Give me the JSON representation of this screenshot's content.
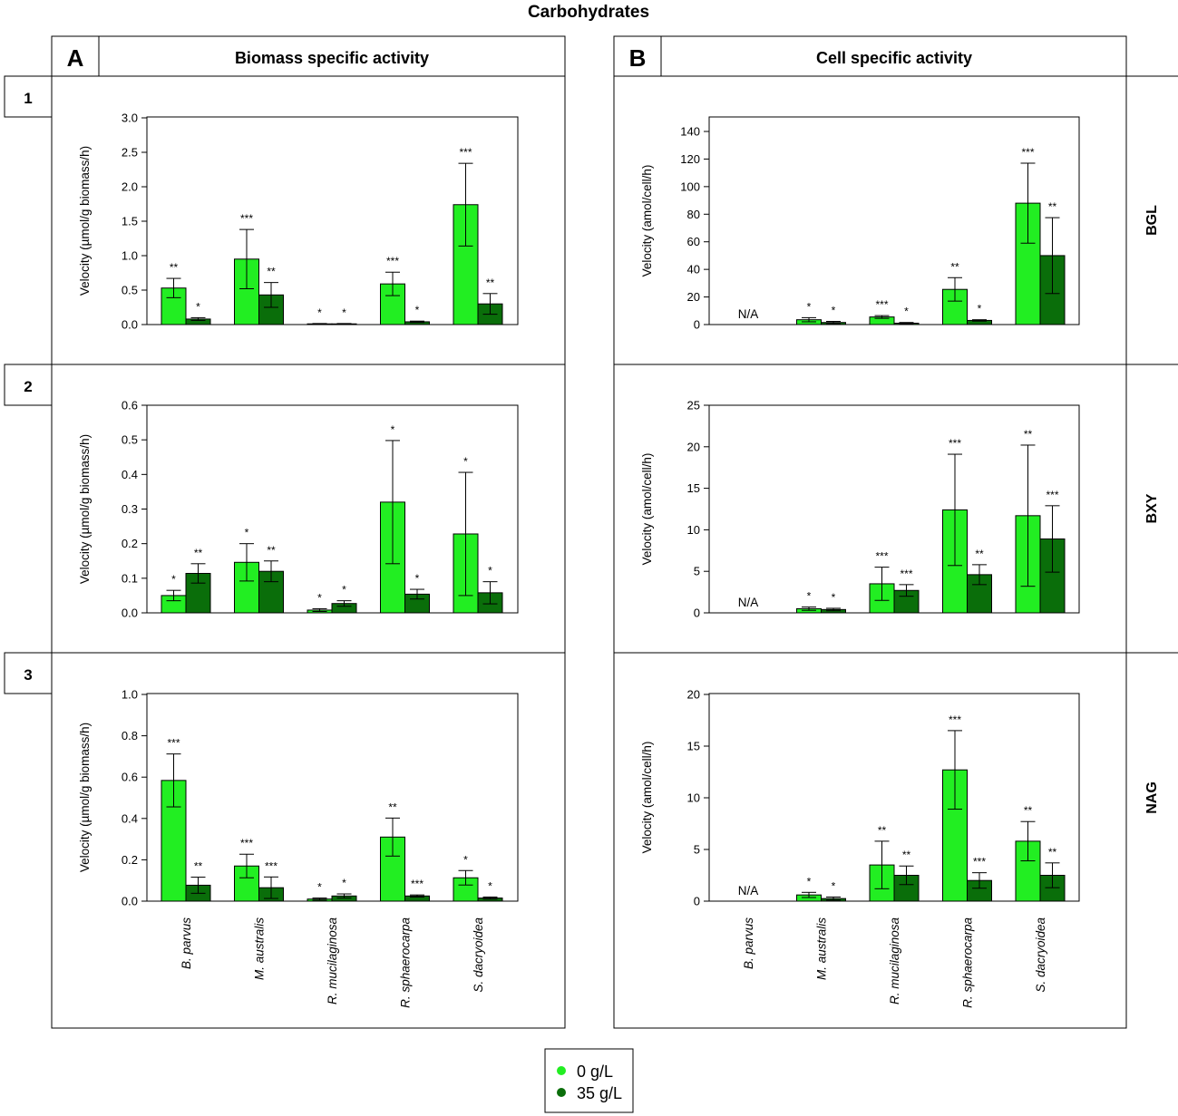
{
  "title": "Carbohydrates",
  "columns": [
    {
      "letter": "A",
      "heading": "Biomass specific activity"
    },
    {
      "letter": "B",
      "heading": "Cell specific activity"
    }
  ],
  "rows": [
    {
      "number": "1",
      "enzyme": "BGL"
    },
    {
      "number": "2",
      "enzyme": "BXY"
    },
    {
      "number": "3",
      "enzyme": "NAG"
    }
  ],
  "legend": {
    "items": [
      {
        "label": "0 g/L",
        "color": "#22EE22"
      },
      {
        "label": "35 g/L",
        "color": "#0A6E0A"
      }
    ]
  },
  "chart_data": [
    {
      "type": "bar",
      "panel": "A1",
      "ylabel": "Velocity (µmol/g biomass/h)",
      "ylim": [
        0,
        3.0
      ],
      "yticks": [
        "0.0",
        "0.5",
        "1.0",
        "1.5",
        "2.0",
        "2.5",
        "3.0"
      ],
      "categories": [
        "B. parvus",
        "M. australis",
        "R. mucilaginosa",
        "R. sphaerocarpa",
        "S. dacryoidea"
      ],
      "series": [
        {
          "name": "0 g/L",
          "values": [
            0.53,
            0.95,
            0.01,
            0.59,
            1.74
          ],
          "err": [
            0.14,
            0.43,
            0.005,
            0.17,
            0.6
          ],
          "sig": [
            "**",
            "***",
            "*",
            "***",
            "***"
          ]
        },
        {
          "name": "35 g/L",
          "values": [
            0.08,
            0.43,
            0.01,
            0.04,
            0.3
          ],
          "err": [
            0.02,
            0.18,
            0.005,
            0.01,
            0.15
          ],
          "sig": [
            "*",
            "**",
            "*",
            "*",
            "**"
          ]
        }
      ]
    },
    {
      "type": "bar",
      "panel": "B1",
      "ylabel": "Velocity (amol/cell/h)",
      "ylim": [
        0,
        150
      ],
      "yticks": [
        "0",
        "20",
        "40",
        "60",
        "80",
        "100",
        "120",
        "140"
      ],
      "categories": [
        "B. parvus",
        "M. australis",
        "R. mucilaginosa",
        "R. sphaerocarpa",
        "S. dacryoidea"
      ],
      "na_label": "N/A",
      "series": [
        {
          "name": "0 g/L",
          "values": [
            null,
            3.5,
            5.5,
            25.5,
            88
          ],
          "err": [
            null,
            1.5,
            1.0,
            8.5,
            29
          ],
          "sig": [
            null,
            "*",
            "***",
            "**",
            "***"
          ]
        },
        {
          "name": "35 g/L",
          "values": [
            null,
            1.5,
            1.0,
            3.0,
            50
          ],
          "err": [
            null,
            0.8,
            0.5,
            0.5,
            27.5
          ],
          "sig": [
            null,
            "*",
            "*",
            "*",
            "**"
          ]
        }
      ]
    },
    {
      "type": "bar",
      "panel": "A2",
      "ylabel": "Velocity (µmol/g biomass/h)",
      "ylim": [
        0,
        0.6
      ],
      "yticks": [
        "0.0",
        "0.1",
        "0.2",
        "0.3",
        "0.4",
        "0.5",
        "0.6"
      ],
      "categories": [
        "B. parvus",
        "M. australis",
        "R. mucilaginosa",
        "R. sphaerocarpa",
        "S. dacryoidea"
      ],
      "series": [
        {
          "name": "0 g/L",
          "values": [
            0.05,
            0.146,
            0.008,
            0.32,
            0.228
          ],
          "err": [
            0.015,
            0.054,
            0.004,
            0.178,
            0.178
          ],
          "sig": [
            "*",
            "*",
            "*",
            "*",
            "*"
          ]
        },
        {
          "name": "35 g/L",
          "values": [
            0.114,
            0.12,
            0.027,
            0.054,
            0.058
          ],
          "err": [
            0.028,
            0.03,
            0.008,
            0.014,
            0.032
          ],
          "sig": [
            "**",
            "**",
            "*",
            "*",
            "*"
          ]
        }
      ]
    },
    {
      "type": "bar",
      "panel": "B2",
      "ylabel": "Velocity (amol/cell/h)",
      "ylim": [
        0,
        25
      ],
      "yticks": [
        "0",
        "5",
        "10",
        "15",
        "20",
        "25"
      ],
      "categories": [
        "B. parvus",
        "M. australis",
        "R. mucilaginosa",
        "R. sphaerocarpa",
        "S. dacryoidea"
      ],
      "na_label": "N/A",
      "series": [
        {
          "name": "0 g/L",
          "values": [
            null,
            0.5,
            3.5,
            12.4,
            11.7
          ],
          "err": [
            null,
            0.2,
            2.0,
            6.7,
            8.5
          ],
          "sig": [
            null,
            "*",
            "***",
            "***",
            "**"
          ]
        },
        {
          "name": "35 g/L",
          "values": [
            null,
            0.4,
            2.7,
            4.6,
            8.9
          ],
          "err": [
            null,
            0.15,
            0.7,
            1.2,
            4.0
          ],
          "sig": [
            null,
            "*",
            "***",
            "**",
            "***"
          ]
        }
      ]
    },
    {
      "type": "bar",
      "panel": "A3",
      "ylabel": "Velocity (µmol/g biomass/h)",
      "ylim": [
        0,
        1.0
      ],
      "yticks": [
        "0.0",
        "0.2",
        "0.4",
        "0.6",
        "0.8",
        "1.0"
      ],
      "categories": [
        "B. parvus",
        "M. australis",
        "R. mucilaginosa",
        "R. sphaerocarpa",
        "S. dacryoidea"
      ],
      "series": [
        {
          "name": "0 g/L",
          "values": [
            0.584,
            0.17,
            0.01,
            0.31,
            0.113
          ],
          "err": [
            0.128,
            0.057,
            0.005,
            0.092,
            0.035
          ],
          "sig": [
            "***",
            "***",
            "*",
            "**",
            "*"
          ]
        },
        {
          "name": "35 g/L",
          "values": [
            0.077,
            0.065,
            0.025,
            0.025,
            0.015
          ],
          "err": [
            0.039,
            0.052,
            0.01,
            0.005,
            0.005
          ],
          "sig": [
            "**",
            "***",
            "*",
            "***",
            "*"
          ]
        }
      ]
    },
    {
      "type": "bar",
      "panel": "B3",
      "ylabel": "Velocity (amol/cell/h)",
      "ylim": [
        0,
        20
      ],
      "yticks": [
        "0",
        "5",
        "10",
        "15",
        "20"
      ],
      "categories": [
        "B. parvus",
        "M. australis",
        "R. mucilaginosa",
        "R. sphaerocarpa",
        "S. dacryoidea"
      ],
      "na_label": "N/A",
      "series": [
        {
          "name": "0 g/L",
          "values": [
            null,
            0.6,
            3.5,
            12.7,
            5.8
          ],
          "err": [
            null,
            0.25,
            2.3,
            3.8,
            1.9
          ],
          "sig": [
            null,
            "*",
            "**",
            "***",
            "**"
          ]
        },
        {
          "name": "35 g/L",
          "values": [
            null,
            0.25,
            2.5,
            2.0,
            2.5
          ],
          "err": [
            null,
            0.15,
            0.9,
            0.75,
            1.2
          ],
          "sig": [
            null,
            "*",
            "**",
            "***",
            "**"
          ]
        }
      ]
    }
  ]
}
